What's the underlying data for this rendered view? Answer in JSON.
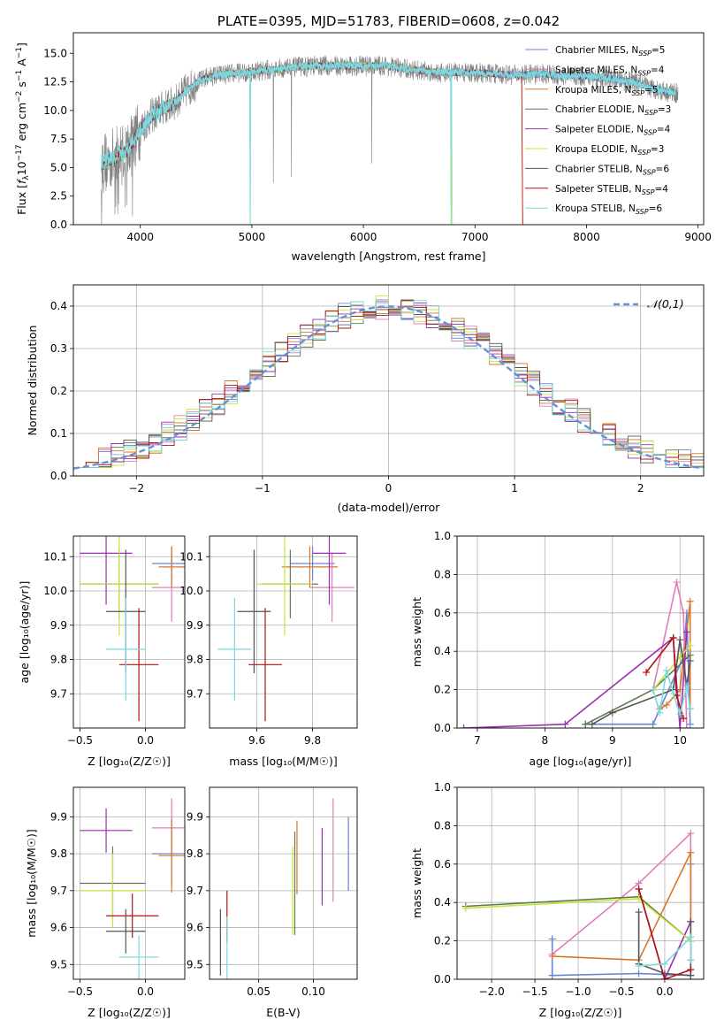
{
  "colors": {
    "chabrier_miles": "#6a83d6",
    "salpeter_miles": "#e37bbd",
    "kroupa_miles": "#d9762a",
    "chabrier_elodie": "#5c7d4a",
    "salpeter_elodie": "#9b2fb0",
    "kroupa_elodie": "#c7e33c",
    "chabrier_stelib": "#555555",
    "salpeter_stelib": "#b01212",
    "kroupa_stelib": "#7ad8de",
    "data": "#808080",
    "gauss": "#6a8fd6"
  },
  "chart_data": [
    {
      "id": "spectrum",
      "type": "line",
      "title": "PLATE=0395, MJD=51783, FIBERID=0608, z=0.042",
      "xlabel": "wavelength [Angstrom, rest frame]",
      "ylabel": "Flux [f_λ 10^-17 erg cm^-2 s^-1 A^-1]",
      "ylabel_parts": {
        "a": "Flux [",
        "b": "f",
        "c": "λ",
        "d": "10",
        "e": "−17",
        "f": " erg cm",
        "g": "−2",
        "h": " s",
        "i": "−1",
        "j": " A",
        "k": "−1",
        "l": "]"
      },
      "xlim": [
        3400,
        9050
      ],
      "ylim": [
        0,
        16.8
      ],
      "xticks": [
        "4000",
        "5000",
        "6000",
        "7000",
        "8000",
        "9000"
      ],
      "xtick_values": [
        4000,
        5000,
        6000,
        7000,
        8000,
        9000
      ],
      "yticks": [
        "0.0",
        "2.5",
        "5.0",
        "7.5",
        "10.0",
        "12.5",
        "15.0"
      ],
      "ytick_values": [
        0,
        2.5,
        5,
        7.5,
        10,
        12.5,
        15
      ],
      "legend_position": "top-right",
      "legend": [
        {
          "label": "Chabrier MILES, N",
          "sub": "SSP",
          "suffix": "=5",
          "color": "#6a83d6"
        },
        {
          "label": "Salpeter MILES, N",
          "sub": "SSP",
          "suffix": "=4",
          "color": "#e37bbd"
        },
        {
          "label": "Kroupa MILES, N",
          "sub": "SSP",
          "suffix": "=5",
          "color": "#d9762a"
        },
        {
          "label": "Chabrier ELODIE, N",
          "sub": "SSP",
          "suffix": "=3",
          "color": "#5c7d4a"
        },
        {
          "label": "Salpeter ELODIE, N",
          "sub": "SSP",
          "suffix": "=4",
          "color": "#9b2fb0"
        },
        {
          "label": "Kroupa ELODIE, N",
          "sub": "SSP",
          "suffix": "=3",
          "color": "#c7e33c"
        },
        {
          "label": "Chabrier STELIB, N",
          "sub": "SSP",
          "suffix": "=6",
          "color": "#555555"
        },
        {
          "label": "Salpeter STELIB, N",
          "sub": "SSP",
          "suffix": "=4",
          "color": "#b01212"
        },
        {
          "label": "Kroupa STELIB, N",
          "sub": "SSP",
          "suffix": "=6",
          "color": "#7ad8de"
        }
      ],
      "continuum": {
        "x": [
          3650,
          3700,
          3800,
          3900,
          4000,
          4100,
          4200,
          4300,
          4400,
          4500,
          4600,
          4700,
          4800,
          4900,
          5000,
          5200,
          5400,
          5600,
          5800,
          6000,
          6200,
          6400,
          6600,
          6800,
          7000,
          7200,
          7400,
          7600,
          7800,
          8000,
          8200,
          8400,
          8600,
          8800
        ],
        "y": [
          5.3,
          5.5,
          6.0,
          6.6,
          8.4,
          9.5,
          10.2,
          10.6,
          11.6,
          12.4,
          12.9,
          13.1,
          13.2,
          13.3,
          13.4,
          13.6,
          13.8,
          13.9,
          13.9,
          13.9,
          13.9,
          13.6,
          13.4,
          13.3,
          13.3,
          13.2,
          13.1,
          13.2,
          13.0,
          13.0,
          12.8,
          12.5,
          11.9,
          11.5
        ]
      }
    },
    {
      "id": "residuals",
      "type": "histogram",
      "xlabel": "(data-model)/error",
      "ylabel": "Normed distribution",
      "xlim": [
        -2.5,
        2.5
      ],
      "ylim": [
        0,
        0.45
      ],
      "xticks": [
        "−2",
        "−1",
        "0",
        "1",
        "2"
      ],
      "xtick_values": [
        -2,
        -1,
        0,
        1,
        2
      ],
      "yticks": [
        "0.0",
        "0.1",
        "0.2",
        "0.3",
        "0.4"
      ],
      "ytick_values": [
        0,
        0.1,
        0.2,
        0.3,
        0.4
      ],
      "bin_width": 0.1,
      "legend_label": "𝒩(0,1)",
      "legend_position": "top-right",
      "grid": true
    },
    {
      "id": "age_vs_Z",
      "type": "errorbar",
      "xlabel": "Z [log₁₀(Z/Z☉)]",
      "ylabel": "age  [log₁₀(age/yr)]",
      "xlim": [
        -0.55,
        0.3
      ],
      "ylim": [
        9.6,
        10.16
      ],
      "xticks": [
        "−0.5",
        "0.0"
      ],
      "xtick_values": [
        -0.5,
        0
      ],
      "yticks": [
        "9.7",
        "9.8",
        "9.9",
        "10.0",
        "10.1"
      ],
      "ytick_values": [
        9.7,
        9.8,
        9.9,
        10.0,
        10.1
      ],
      "points": [
        {
          "x": 0.2,
          "y": 10.08,
          "xerr": 0.15,
          "yerr": 0.05,
          "color": "#6a83d6"
        },
        {
          "x": 0.2,
          "y": 10.01,
          "xerr": 0.15,
          "yerr": 0.1,
          "color": "#e37bbd"
        },
        {
          "x": 0.2,
          "y": 10.07,
          "xerr": 0.1,
          "yerr": 0.06,
          "color": "#d9762a"
        },
        {
          "x": -0.2,
          "y": 10.02,
          "xerr": 0.3,
          "yerr": 0.1,
          "color": "#5c7d4a"
        },
        {
          "x": -0.3,
          "y": 10.11,
          "xerr": 0.2,
          "yerr": 0.15,
          "color": "#9b2fb0"
        },
        {
          "x": -0.2,
          "y": 10.02,
          "xerr": 0.3,
          "yerr": 0.15,
          "color": "#c7e33c"
        },
        {
          "x": -0.15,
          "y": 9.94,
          "xerr": 0.15,
          "yerr": 0.18,
          "color": "#555555"
        },
        {
          "x": -0.05,
          "y": 9.785,
          "xerr": 0.15,
          "yerr": 0.165,
          "color": "#b01212"
        },
        {
          "x": -0.15,
          "y": 9.83,
          "xerr": 0.15,
          "yerr": 0.15,
          "color": "#7ad8de"
        }
      ]
    },
    {
      "id": "age_vs_mass",
      "type": "errorbar",
      "xlabel": "mass [log₁₀(M/M☉)]",
      "ylabel": "",
      "xlim": [
        9.43,
        9.96
      ],
      "ylim": [
        9.6,
        10.16
      ],
      "xticks": [
        "9.6",
        "9.8"
      ],
      "xtick_values": [
        9.6,
        9.8
      ],
      "yticks": [
        "9.7",
        "9.8",
        "9.9",
        "10.0",
        "10.1"
      ],
      "ytick_values": [
        9.7,
        9.8,
        9.9,
        10.0,
        10.1
      ],
      "points": [
        {
          "x": 9.8,
          "y": 10.08,
          "xerr": 0.08,
          "yerr": 0.05,
          "color": "#6a83d6"
        },
        {
          "x": 9.87,
          "y": 10.01,
          "xerr": 0.08,
          "yerr": 0.1,
          "color": "#e37bbd"
        },
        {
          "x": 9.79,
          "y": 10.07,
          "xerr": 0.1,
          "yerr": 0.06,
          "color": "#d9762a"
        },
        {
          "x": 9.72,
          "y": 10.02,
          "xerr": 0.1,
          "yerr": 0.1,
          "color": "#5c7d4a"
        },
        {
          "x": 9.86,
          "y": 10.11,
          "xerr": 0.06,
          "yerr": 0.15,
          "color": "#9b2fb0"
        },
        {
          "x": 9.7,
          "y": 10.02,
          "xerr": 0.1,
          "yerr": 0.15,
          "color": "#c7e33c"
        },
        {
          "x": 9.59,
          "y": 9.94,
          "xerr": 0.06,
          "yerr": 0.18,
          "color": "#555555"
        },
        {
          "x": 9.63,
          "y": 9.785,
          "xerr": 0.06,
          "yerr": 0.165,
          "color": "#b01212"
        },
        {
          "x": 9.52,
          "y": 9.83,
          "xerr": 0.06,
          "yerr": 0.15,
          "color": "#7ad8de"
        }
      ]
    },
    {
      "id": "weight_vs_age",
      "type": "line",
      "xlabel": "age  [log₁₀(age/yr)]",
      "ylabel": "mass weight",
      "xlim": [
        6.7,
        10.35
      ],
      "ylim": [
        0,
        1.0
      ],
      "xticks": [
        "7",
        "8",
        "9",
        "10"
      ],
      "xtick_values": [
        7,
        8,
        9,
        10
      ],
      "yticks": [
        "0.0",
        "0.2",
        "0.4",
        "0.6",
        "0.8",
        "1.0"
      ],
      "ytick_values": [
        0,
        0.2,
        0.4,
        0.6,
        0.8,
        1.0
      ],
      "series": [
        {
          "color": "#6a83d6",
          "x": [
            8.6,
            9.6,
            10.05,
            10.1,
            10.15
          ],
          "y": [
            0.02,
            0.02,
            0.37,
            0.6,
            0.02
          ]
        },
        {
          "color": "#e37bbd",
          "x": [
            9.6,
            9.95,
            10.05,
            10.1
          ],
          "y": [
            0.2,
            0.76,
            0.6,
            0.0
          ]
        },
        {
          "color": "#d9762a",
          "x": [
            9.7,
            9.8,
            10.0,
            10.15,
            10.15
          ],
          "y": [
            0.1,
            0.12,
            0.2,
            0.66,
            0.1
          ]
        },
        {
          "color": "#5c7d4a",
          "x": [
            8.6,
            9.6,
            10.15
          ],
          "y": [
            0.02,
            0.2,
            0.38
          ]
        },
        {
          "color": "#9b2fb0",
          "x": [
            6.8,
            8.3,
            9.9,
            10.0,
            10.1
          ],
          "y": [
            0.0,
            0.02,
            0.47,
            0.0,
            0.5
          ]
        },
        {
          "color": "#c7e33c",
          "x": [
            9.6,
            10.0,
            10.15
          ],
          "y": [
            0.2,
            0.37,
            0.43
          ]
        },
        {
          "color": "#555555",
          "x": [
            8.7,
            9.0,
            9.9,
            10.0,
            10.1,
            10.15
          ],
          "y": [
            0.02,
            0.08,
            0.2,
            0.46,
            0.22,
            0.35
          ]
        },
        {
          "color": "#b01212",
          "x": [
            9.5,
            9.9,
            9.95,
            10.05
          ],
          "y": [
            0.29,
            0.47,
            0.17,
            0.05
          ]
        },
        {
          "color": "#7ad8de",
          "x": [
            9.6,
            9.7,
            9.8,
            9.9,
            10.0,
            10.1,
            10.15
          ],
          "y": [
            0.2,
            0.08,
            0.3,
            0.18,
            0.07,
            0.22,
            0.1
          ]
        }
      ]
    },
    {
      "id": "mass_vs_Z",
      "type": "errorbar",
      "xlabel": "Z [log₁₀(Z/Z☉)]",
      "ylabel": "mass [log₁₀(M/M☉)]",
      "xlim": [
        -0.55,
        0.3
      ],
      "ylim": [
        9.46,
        9.98
      ],
      "xticks": [
        "−0.5",
        "0.0"
      ],
      "xtick_values": [
        -0.5,
        0
      ],
      "yticks": [
        "9.5",
        "9.6",
        "9.7",
        "9.8",
        "9.9"
      ],
      "ytick_values": [
        9.5,
        9.6,
        9.7,
        9.8,
        9.9
      ],
      "points": [
        {
          "x": 0.2,
          "y": 9.8,
          "xerr": 0.15,
          "yerr": 0.08,
          "color": "#6a83d6"
        },
        {
          "x": 0.2,
          "y": 9.87,
          "xerr": 0.15,
          "yerr": 0.08,
          "color": "#e37bbd"
        },
        {
          "x": 0.2,
          "y": 9.795,
          "xerr": 0.1,
          "yerr": 0.1,
          "color": "#d9762a"
        },
        {
          "x": -0.25,
          "y": 9.72,
          "xerr": 0.25,
          "yerr": 0.1,
          "color": "#5c7d4a"
        },
        {
          "x": -0.3,
          "y": 9.863,
          "xerr": 0.2,
          "yerr": 0.06,
          "color": "#9b2fb0"
        },
        {
          "x": -0.25,
          "y": 9.7,
          "xerr": 0.25,
          "yerr": 0.1,
          "color": "#c7e33c"
        },
        {
          "x": -0.15,
          "y": 9.59,
          "xerr": 0.15,
          "yerr": 0.06,
          "color": "#555555"
        },
        {
          "x": -0.1,
          "y": 9.632,
          "xerr": 0.2,
          "yerr": 0.06,
          "color": "#b01212"
        },
        {
          "x": -0.05,
          "y": 9.52,
          "xerr": 0.15,
          "yerr": 0.06,
          "color": "#7ad8de"
        }
      ]
    },
    {
      "id": "mass_vs_ebv",
      "type": "errorbar",
      "xlabel": "E(B-V)",
      "ylabel": "",
      "xlim": [
        0.005,
        0.14
      ],
      "ylim": [
        9.46,
        9.98
      ],
      "xticks": [
        "0.05",
        "0.10"
      ],
      "xtick_values": [
        0.05,
        0.1
      ],
      "yticks": [
        "9.5",
        "9.6",
        "9.7",
        "9.8",
        "9.9"
      ],
      "ytick_values": [
        9.5,
        9.6,
        9.7,
        9.8,
        9.9
      ],
      "points": [
        {
          "x": 0.132,
          "y": 9.8,
          "xerr": 0,
          "yerr": 0.1,
          "color": "#6a83d6"
        },
        {
          "x": 0.118,
          "y": 9.81,
          "xerr": 0,
          "yerr": 0.14,
          "color": "#e37bbd"
        },
        {
          "x": 0.085,
          "y": 9.79,
          "xerr": 0,
          "yerr": 0.1,
          "color": "#d9762a"
        },
        {
          "x": 0.083,
          "y": 9.72,
          "xerr": 0,
          "yerr": 0.14,
          "color": "#5c7d4a"
        },
        {
          "x": 0.108,
          "y": 9.765,
          "xerr": 0,
          "yerr": 0.105,
          "color": "#9b2fb0"
        },
        {
          "x": 0.081,
          "y": 9.7,
          "xerr": 0,
          "yerr": 0.12,
          "color": "#c7e33c"
        },
        {
          "x": 0.015,
          "y": 9.56,
          "xerr": 0,
          "yerr": 0.09,
          "color": "#555555"
        },
        {
          "x": 0.021,
          "y": 9.63,
          "xerr": 0,
          "yerr": 0.07,
          "color": "#b01212"
        },
        {
          "x": 0.021,
          "y": 9.545,
          "xerr": 0,
          "yerr": 0.085,
          "color": "#7ad8de"
        }
      ]
    },
    {
      "id": "weight_vs_Z",
      "type": "line",
      "xlabel": "Z [log₁₀(Z/Z☉)]",
      "ylabel": "mass weight",
      "xlim": [
        -2.4,
        0.45
      ],
      "ylim": [
        0,
        1.0
      ],
      "xticks": [
        "−2.0",
        "−1.5",
        "−1.0",
        "−0.5",
        "0.0"
      ],
      "xtick_values": [
        -2,
        -1.5,
        -1,
        -0.5,
        0
      ],
      "yticks": [
        "0.0",
        "0.2",
        "0.4",
        "0.6",
        "0.8",
        "1.0"
      ],
      "ytick_values": [
        0,
        0.2,
        0.4,
        0.6,
        0.8,
        1.0
      ],
      "series": [
        {
          "color": "#6a83d6",
          "x": [
            -1.3,
            -1.3,
            -0.3,
            0.3,
            0.3
          ],
          "y": [
            0.21,
            0.02,
            0.03,
            0.02,
            0.6
          ]
        },
        {
          "color": "#e37bbd",
          "x": [
            -1.3,
            -0.3,
            0.3,
            0.3
          ],
          "y": [
            0.13,
            0.5,
            0.76,
            0.0
          ]
        },
        {
          "color": "#d9762a",
          "x": [
            -1.3,
            -0.3,
            0.3,
            0.3,
            0.3
          ],
          "y": [
            0.12,
            0.1,
            0.66,
            0.2,
            0.1
          ]
        },
        {
          "color": "#5c7d4a",
          "x": [
            -2.3,
            -0.3,
            0.3
          ],
          "y": [
            0.38,
            0.43,
            0.2
          ]
        },
        {
          "color": "#9b2fb0",
          "x": [
            -0.3,
            0.0,
            0.3
          ],
          "y": [
            0.47,
            0.0,
            0.3
          ]
        },
        {
          "color": "#c7e33c",
          "x": [
            -2.3,
            -0.3,
            0.3
          ],
          "y": [
            0.37,
            0.42,
            0.2
          ]
        },
        {
          "color": "#555555",
          "x": [
            -0.3,
            -0.3,
            0.0,
            0.3,
            0.3
          ],
          "y": [
            0.35,
            0.08,
            0.03,
            0.02,
            0.3
          ]
        },
        {
          "color": "#b01212",
          "x": [
            -0.3,
            0.0,
            0.3
          ],
          "y": [
            0.47,
            0.0,
            0.05
          ]
        },
        {
          "color": "#7ad8de",
          "x": [
            -0.3,
            0.0,
            0.3,
            0.3
          ],
          "y": [
            0.07,
            0.08,
            0.22,
            0.1
          ]
        }
      ]
    }
  ]
}
